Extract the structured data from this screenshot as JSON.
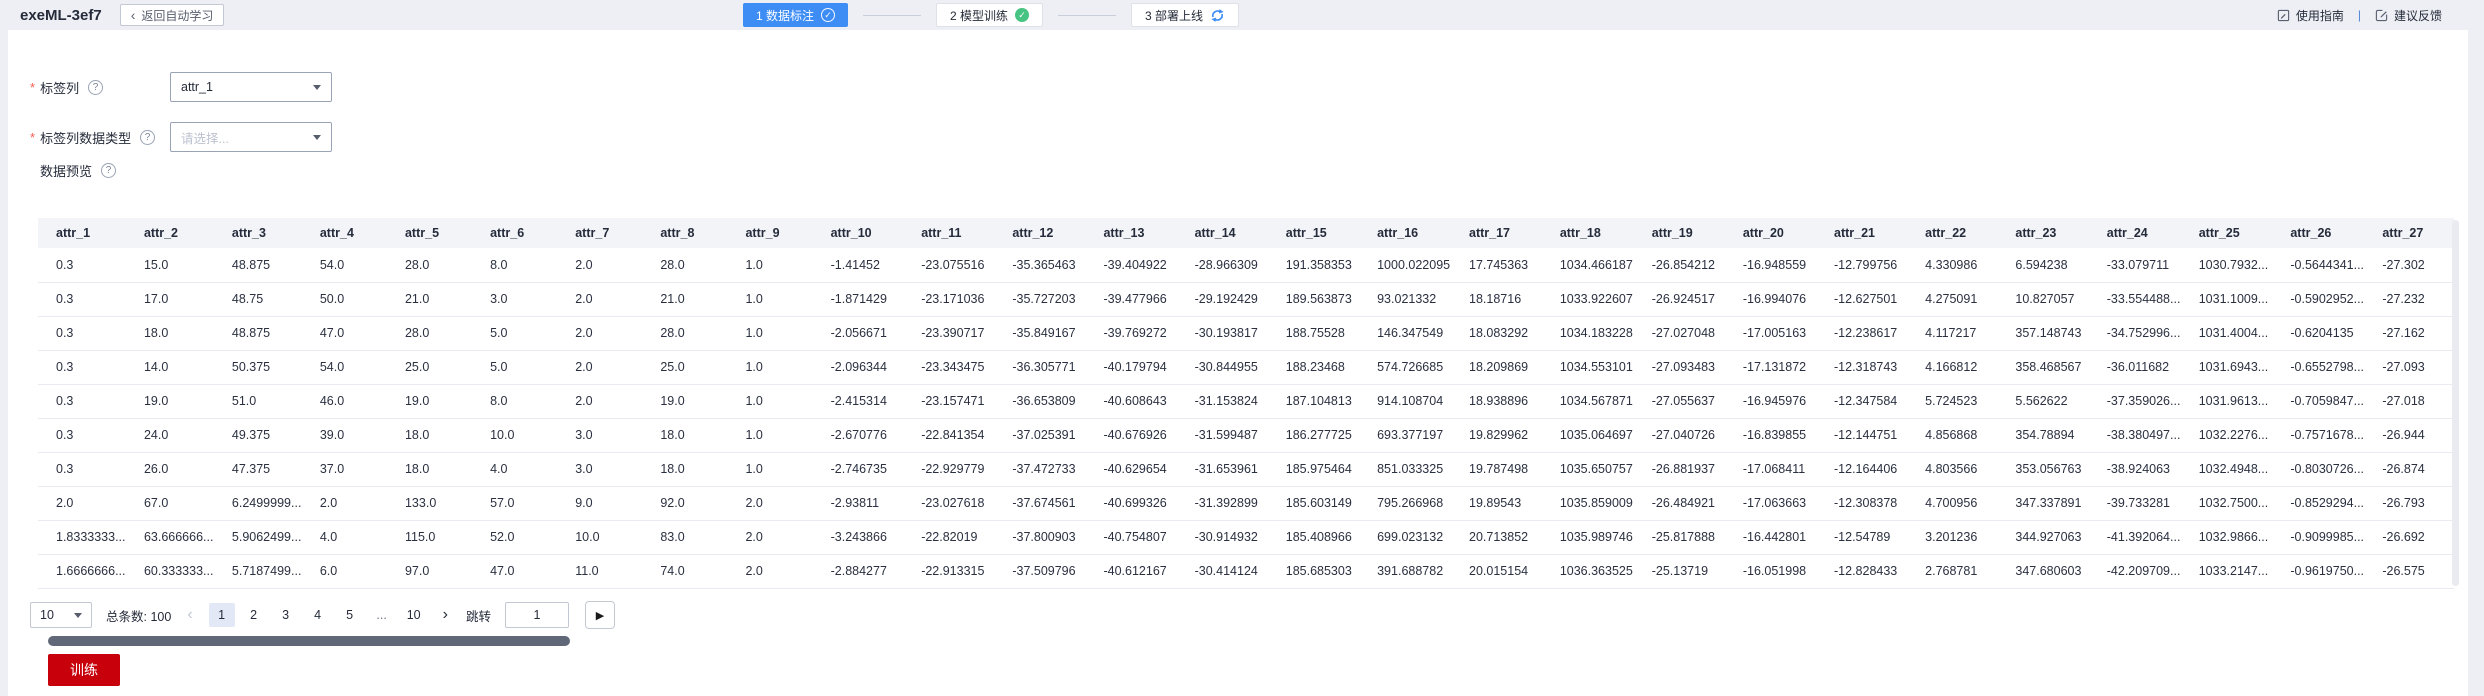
{
  "header": {
    "title": "exeML-3ef7",
    "back_label": "返回自动学习",
    "steps": [
      {
        "label": "1 数据标注",
        "state": "active",
        "icon": "check-outline"
      },
      {
        "label": "2 模型训练",
        "state": "plain",
        "icon": "check-green"
      },
      {
        "label": "3 部署上线",
        "state": "plain",
        "icon": "sync"
      }
    ],
    "links": [
      {
        "label": "使用指南",
        "icon": "guide-icon"
      },
      {
        "label": "建议反馈",
        "icon": "feedback-icon"
      }
    ]
  },
  "form": {
    "label_column": {
      "required": true,
      "label": "标签列",
      "value": "attr_1"
    },
    "label_type": {
      "required": true,
      "label": "标签列数据类型",
      "placeholder": "请选择..."
    },
    "preview_label": "数据预览"
  },
  "table": {
    "columns": [
      "attr_1",
      "attr_2",
      "attr_3",
      "attr_4",
      "attr_5",
      "attr_6",
      "attr_7",
      "attr_8",
      "attr_9",
      "attr_10",
      "attr_11",
      "attr_12",
      "attr_13",
      "attr_14",
      "attr_15",
      "attr_16",
      "attr_17",
      "attr_18",
      "attr_19",
      "attr_20",
      "attr_21",
      "attr_22",
      "attr_23",
      "attr_24",
      "attr_25",
      "attr_26",
      "attr_27"
    ],
    "rows": [
      [
        "0.3",
        "15.0",
        "48.875",
        "54.0",
        "28.0",
        "8.0",
        "2.0",
        "28.0",
        "1.0",
        "-1.41452",
        "-23.075516",
        "-35.365463",
        "-39.404922",
        "-28.966309",
        "191.358353",
        "1000.022095",
        "17.745363",
        "1034.466187",
        "-26.854212",
        "-16.948559",
        "-12.799756",
        "4.330986",
        "6.594238",
        "-33.079711",
        "1030.7932...",
        "-0.5644341...",
        "-27.302"
      ],
      [
        "0.3",
        "17.0",
        "48.75",
        "50.0",
        "21.0",
        "3.0",
        "2.0",
        "21.0",
        "1.0",
        "-1.871429",
        "-23.171036",
        "-35.727203",
        "-39.477966",
        "-29.192429",
        "189.563873",
        "93.021332",
        "18.18716",
        "1033.922607",
        "-26.924517",
        "-16.994076",
        "-12.627501",
        "4.275091",
        "10.827057",
        "-33.554488...",
        "1031.1009...",
        "-0.5902952...",
        "-27.232"
      ],
      [
        "0.3",
        "18.0",
        "48.875",
        "47.0",
        "28.0",
        "5.0",
        "2.0",
        "28.0",
        "1.0",
        "-2.056671",
        "-23.390717",
        "-35.849167",
        "-39.769272",
        "-30.193817",
        "188.75528",
        "146.347549",
        "18.083292",
        "1034.183228",
        "-27.027048",
        "-17.005163",
        "-12.238617",
        "4.117217",
        "357.148743",
        "-34.752996...",
        "1031.4004...",
        "-0.6204135",
        "-27.162"
      ],
      [
        "0.3",
        "14.0",
        "50.375",
        "54.0",
        "25.0",
        "5.0",
        "2.0",
        "25.0",
        "1.0",
        "-2.096344",
        "-23.343475",
        "-36.305771",
        "-40.179794",
        "-30.844955",
        "188.23468",
        "574.726685",
        "18.209869",
        "1034.553101",
        "-27.093483",
        "-17.131872",
        "-12.318743",
        "4.166812",
        "358.468567",
        "-36.011682",
        "1031.6943...",
        "-0.6552798...",
        "-27.093"
      ],
      [
        "0.3",
        "19.0",
        "51.0",
        "46.0",
        "19.0",
        "8.0",
        "2.0",
        "19.0",
        "1.0",
        "-2.415314",
        "-23.157471",
        "-36.653809",
        "-40.608643",
        "-31.153824",
        "187.104813",
        "914.108704",
        "18.938896",
        "1034.567871",
        "-27.055637",
        "-16.945976",
        "-12.347584",
        "5.724523",
        "5.562622",
        "-37.359026...",
        "1031.9613...",
        "-0.7059847...",
        "-27.018"
      ],
      [
        "0.3",
        "24.0",
        "49.375",
        "39.0",
        "18.0",
        "10.0",
        "3.0",
        "18.0",
        "1.0",
        "-2.670776",
        "-22.841354",
        "-37.025391",
        "-40.676926",
        "-31.599487",
        "186.277725",
        "693.377197",
        "19.829962",
        "1035.064697",
        "-27.040726",
        "-16.839855",
        "-12.144751",
        "4.856868",
        "354.78894",
        "-38.380497...",
        "1032.2276...",
        "-0.7571678...",
        "-26.944"
      ],
      [
        "0.3",
        "26.0",
        "47.375",
        "37.0",
        "18.0",
        "4.0",
        "3.0",
        "18.0",
        "1.0",
        "-2.746735",
        "-22.929779",
        "-37.472733",
        "-40.629654",
        "-31.653961",
        "185.975464",
        "851.033325",
        "19.787498",
        "1035.650757",
        "-26.881937",
        "-17.068411",
        "-12.164406",
        "4.803566",
        "353.056763",
        "-38.924063",
        "1032.4948...",
        "-0.8030726...",
        "-26.874"
      ],
      [
        "2.0",
        "67.0",
        "6.2499999...",
        "2.0",
        "133.0",
        "57.0",
        "9.0",
        "92.0",
        "2.0",
        "-2.93811",
        "-23.027618",
        "-37.674561",
        "-40.699326",
        "-31.392899",
        "185.603149",
        "795.266968",
        "19.89543",
        "1035.859009",
        "-26.484921",
        "-17.063663",
        "-12.308378",
        "4.700956",
        "347.337891",
        "-39.733281",
        "1032.7500...",
        "-0.8529294...",
        "-26.793"
      ],
      [
        "1.8333333...",
        "63.666666...",
        "5.9062499...",
        "4.0",
        "115.0",
        "52.0",
        "10.0",
        "83.0",
        "2.0",
        "-3.243866",
        "-22.82019",
        "-37.800903",
        "-40.754807",
        "-30.914932",
        "185.408966",
        "699.023132",
        "20.713852",
        "1035.989746",
        "-25.817888",
        "-16.442801",
        "-12.54789",
        "3.201236",
        "344.927063",
        "-41.392064...",
        "1032.9866...",
        "-0.9099985...",
        "-26.692"
      ],
      [
        "1.6666666...",
        "60.333333...",
        "5.7187499...",
        "6.0",
        "97.0",
        "47.0",
        "11.0",
        "74.0",
        "2.0",
        "-2.884277",
        "-22.913315",
        "-37.509796",
        "-40.612167",
        "-30.414124",
        "185.685303",
        "391.688782",
        "20.015154",
        "1036.363525",
        "-25.13719",
        "-16.051998",
        "-12.828433",
        "2.768781",
        "347.680603",
        "-42.209709...",
        "1033.2147...",
        "-0.9619750...",
        "-26.575"
      ]
    ]
  },
  "pagination": {
    "page_size": "10",
    "total_label": "总条数: 100",
    "prev_label": "‹",
    "next_label": "›",
    "pages": [
      "1",
      "2",
      "3",
      "4",
      "5",
      "...",
      "10"
    ],
    "active_page": "1",
    "jump_label": "跳转",
    "jump_value": "1",
    "forward_label": "▶"
  },
  "train_button_label": "训练",
  "colors": {
    "primary_blue": "#3d8df5",
    "success_green": "#47c482",
    "train_red": "#c7000b",
    "required_red": "#f45c52",
    "page_background": "#edeff4",
    "table_header_bg": "#f2f4f8"
  }
}
